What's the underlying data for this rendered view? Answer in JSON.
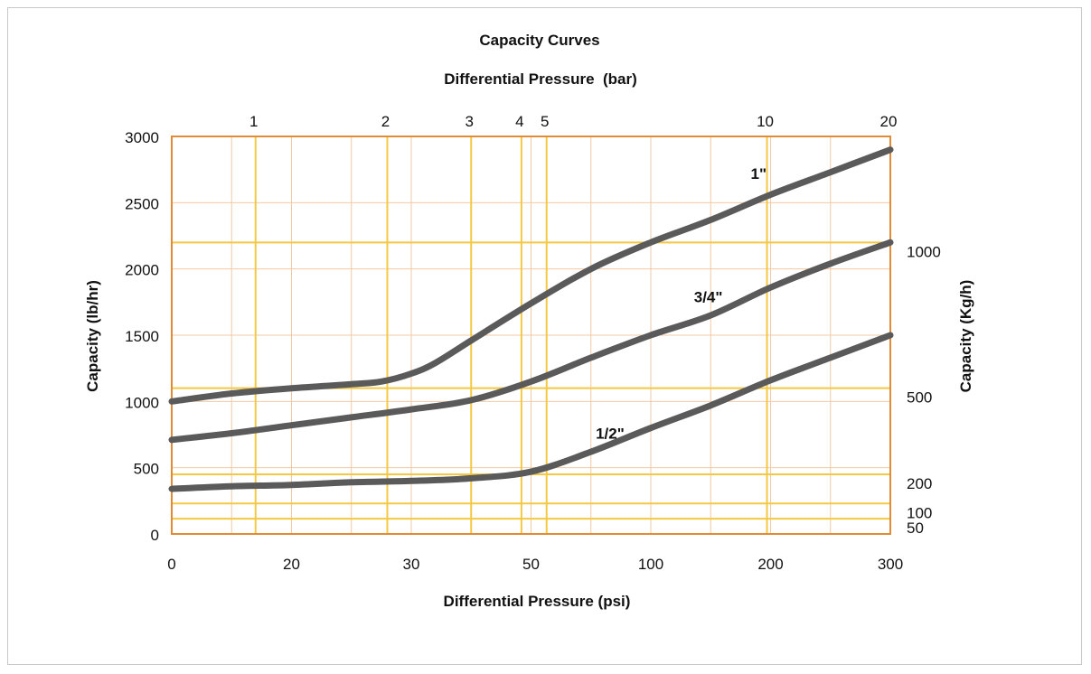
{
  "chart_data": {
    "type": "line",
    "title": "Capacity Curves",
    "top_xlabel": "Differential Pressure  (bar)",
    "xlabel": "Differential Pressure (psi)",
    "ylabel": "Capacity (lb/hr)",
    "y2label": "Capacity (Kg/h)",
    "ylim": [
      0,
      3000
    ],
    "grid": true,
    "x_ticks": [
      "0",
      "20",
      "30",
      "50",
      "100",
      "200",
      "300"
    ],
    "x_tick_index": [
      0,
      1,
      2,
      3,
      4,
      5,
      6
    ],
    "minor_x_index": [
      0.5,
      1.5,
      2.5,
      3.5,
      4.5,
      5.5
    ],
    "y_ticks": [
      0,
      500,
      1000,
      1500,
      2000,
      2500,
      3000
    ],
    "y_tick_labels": [
      "0",
      "500",
      "1000",
      "1500",
      "2000",
      "2500",
      "3000"
    ],
    "top_ticks": [
      {
        "label": "1",
        "x_index": 0.7
      },
      {
        "label": "2",
        "x_index": 1.8
      },
      {
        "label": "3",
        "x_index": 2.5
      },
      {
        "label": "4",
        "x_index": 2.92
      },
      {
        "label": "5",
        "x_index": 3.13
      },
      {
        "label": "10",
        "x_index": 4.97
      },
      {
        "label": "20",
        "x_index": 6.0
      }
    ],
    "right_ticks": [
      {
        "label": "1000",
        "y": 2200
      },
      {
        "label": "500",
        "y": 1100
      },
      {
        "label": "200",
        "y": 450
      },
      {
        "label": "100",
        "y": 230
      },
      {
        "label": "50",
        "y": 115
      }
    ],
    "series": [
      {
        "name": "1\"",
        "label_at": {
          "x_index": 4.9,
          "y": 2680
        },
        "points": [
          [
            0,
            1000
          ],
          [
            0.5,
            1060
          ],
          [
            1,
            1100
          ],
          [
            1.5,
            1130
          ],
          [
            1.75,
            1150
          ],
          [
            2,
            1210
          ],
          [
            2.2,
            1290
          ],
          [
            2.5,
            1460
          ],
          [
            3,
            1740
          ],
          [
            3.5,
            2000
          ],
          [
            4,
            2200
          ],
          [
            4.5,
            2370
          ],
          [
            5,
            2560
          ],
          [
            5.5,
            2730
          ],
          [
            6,
            2900
          ]
        ]
      },
      {
        "name": "3/4\"",
        "label_at": {
          "x_index": 4.48,
          "y": 1750
        },
        "points": [
          [
            0,
            710
          ],
          [
            0.5,
            760
          ],
          [
            1,
            820
          ],
          [
            1.5,
            880
          ],
          [
            2,
            940
          ],
          [
            2.5,
            1010
          ],
          [
            3,
            1150
          ],
          [
            3.5,
            1330
          ],
          [
            4,
            1500
          ],
          [
            4.5,
            1650
          ],
          [
            5,
            1860
          ],
          [
            5.5,
            2040
          ],
          [
            6,
            2200
          ]
        ]
      },
      {
        "name": "1/2\"",
        "label_at": {
          "x_index": 3.66,
          "y": 720
        },
        "points": [
          [
            0,
            340
          ],
          [
            0.5,
            360
          ],
          [
            1,
            370
          ],
          [
            1.5,
            390
          ],
          [
            2,
            400
          ],
          [
            2.5,
            420
          ],
          [
            3,
            470
          ],
          [
            3.5,
            620
          ],
          [
            4,
            800
          ],
          [
            4.5,
            970
          ],
          [
            5,
            1160
          ],
          [
            5.5,
            1330
          ],
          [
            6,
            1500
          ]
        ]
      }
    ],
    "colors": {
      "plot_border": "#e38b34",
      "yellow_grid": "#f4c842",
      "peach_grid": "#f0c9a5",
      "curve": "#5a5a5a"
    }
  }
}
